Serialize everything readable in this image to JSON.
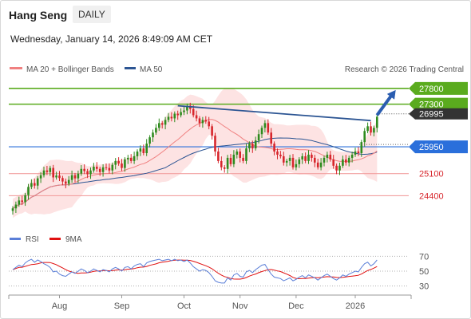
{
  "header": {
    "title": "Hang Seng",
    "timeframe": "DAILY",
    "datetime": "Wednesday, January 14, 2026 8:49:09 AM CET"
  },
  "legend": {
    "ma20": "MA 20 + Bollinger Bands",
    "ma50": "MA 50",
    "credit": "Research © 2026 Trading Central",
    "rsi": "RSI",
    "rsi_ma": "9MA"
  },
  "colors": {
    "up_candle": "#2e8b1e",
    "down_candle": "#d7262c",
    "ma20": "#f08080",
    "ma50": "#2c5593",
    "bollinger_fill": "#fde3e3",
    "resistance": "#5aab1e",
    "pivot": "#2a6fdb",
    "support": "#f2a0a0",
    "current": "#333333",
    "rsi": "#5b7fd8",
    "rsi_ma": "#e01010"
  },
  "chart_data": [
    {
      "type": "candlestick",
      "x_ticks": [
        "Aug",
        "Sep",
        "Oct",
        "Nov",
        "Dec",
        "2026"
      ],
      "ylim": [
        23400,
        28200
      ],
      "current_price": "26995",
      "levels": [
        {
          "label": "27800",
          "value": 27800,
          "kind": "resistance"
        },
        {
          "label": "27300",
          "value": 27300,
          "kind": "resistance"
        },
        {
          "label": "25950",
          "value": 25950,
          "kind": "pivot"
        },
        {
          "label": "25100",
          "value": 25100,
          "kind": "support"
        },
        {
          "label": "24400",
          "value": 24400,
          "kind": "support"
        }
      ],
      "close": [
        24000,
        24120,
        24250,
        24200,
        24420,
        24680,
        24800,
        24720,
        24950,
        25050,
        25200,
        25150,
        25280,
        24980,
        25040,
        24960,
        24850,
        24780,
        24900,
        25050,
        24950,
        25100,
        25250,
        25180,
        25080,
        25200,
        25320,
        25250,
        25150,
        25300,
        25280,
        25200,
        25380,
        25500,
        25420,
        25280,
        25550,
        25600,
        25500,
        25650,
        25800,
        25900,
        25750,
        26050,
        26250,
        26400,
        26550,
        26700,
        26650,
        26800,
        26900,
        26850,
        27000,
        26950,
        27050,
        27100,
        27250,
        27150,
        26950,
        26850,
        26700,
        26800,
        26750,
        26600,
        26300,
        25800,
        25500,
        25300,
        25250,
        25600,
        25400,
        25700,
        25800,
        25600,
        25500,
        25900,
        26050,
        25900,
        26150,
        26350,
        26550,
        26700,
        26400,
        26050,
        25800,
        25700,
        25650,
        25450,
        25500,
        25600,
        25300,
        25400,
        25550,
        25650,
        25500,
        25700,
        25600,
        25450,
        25300,
        25450,
        25600,
        25700,
        25550,
        25350,
        25200,
        25350,
        25550,
        25450,
        25600,
        25700,
        25800,
        25750,
        26100,
        26450,
        26600,
        26400,
        26550,
        26900
      ],
      "trendline": {
        "from_index": 53,
        "from_value": 27250,
        "to_index": 115,
        "to_value": 26780
      },
      "arrow": {
        "from_index": 117,
        "from_value": 26950,
        "to_index": 123,
        "to_value": 27750
      }
    },
    {
      "type": "line",
      "name": "RSI",
      "y_ticks": [
        70,
        50,
        30
      ],
      "ylim": [
        20,
        80
      ],
      "series": [
        {
          "name": "RSI",
          "values": [
            52,
            55,
            58,
            56,
            61,
            64,
            66,
            62,
            65,
            63,
            60,
            58,
            55,
            49,
            50,
            46,
            44,
            43,
            46,
            49,
            47,
            50,
            53,
            51,
            48,
            50,
            53,
            51,
            49,
            52,
            51,
            49,
            53,
            55,
            53,
            50,
            55,
            56,
            53,
            57,
            59,
            60,
            56,
            61,
            63,
            64,
            65,
            66,
            64,
            65,
            66,
            64,
            66,
            64,
            65,
            63,
            65,
            61,
            56,
            53,
            50,
            52,
            51,
            48,
            43,
            37,
            35,
            34,
            34,
            41,
            38,
            45,
            47,
            43,
            42,
            49,
            51,
            48,
            52,
            55,
            58,
            59,
            52,
            46,
            42,
            41,
            40,
            37,
            39,
            41,
            37,
            39,
            42,
            44,
            41,
            45,
            43,
            41,
            38,
            41,
            44,
            46,
            43,
            40,
            38,
            41,
            45,
            43,
            46,
            48,
            50,
            49,
            55,
            60,
            62,
            57,
            60,
            65
          ]
        }
      ]
    }
  ]
}
